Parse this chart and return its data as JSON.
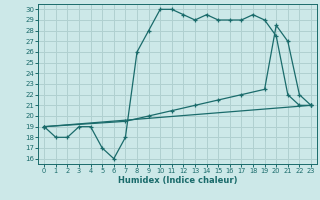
{
  "xlabel": "Humidex (Indice chaleur)",
  "bg_color": "#cce8e8",
  "grid_color": "#b0d0d0",
  "line_color": "#1a6b6b",
  "xlim": [
    -0.5,
    23.5
  ],
  "ylim": [
    15.5,
    30.5
  ],
  "yticks": [
    16,
    17,
    18,
    19,
    20,
    21,
    22,
    23,
    24,
    25,
    26,
    27,
    28,
    29,
    30
  ],
  "xticks": [
    0,
    1,
    2,
    3,
    4,
    5,
    6,
    7,
    8,
    9,
    10,
    11,
    12,
    13,
    14,
    15,
    16,
    17,
    18,
    19,
    20,
    21,
    22,
    23
  ],
  "line1_x": [
    0,
    1,
    2,
    3,
    4,
    5,
    6,
    7,
    8,
    9,
    10,
    11,
    12,
    13,
    14,
    15,
    16,
    17,
    18,
    19,
    20,
    21,
    22,
    23
  ],
  "line1_y": [
    19,
    18,
    18,
    19,
    19,
    17,
    16,
    18,
    26,
    28,
    30,
    30,
    29.5,
    29,
    29.5,
    29,
    29,
    29,
    29.5,
    29,
    27.5,
    22,
    21,
    21
  ],
  "line2_x": [
    0,
    23
  ],
  "line2_y": [
    19,
    21
  ],
  "line3_x": [
    0,
    7,
    9,
    11,
    13,
    15,
    17,
    19,
    20,
    21,
    22,
    23
  ],
  "line3_y": [
    19,
    19.5,
    20.0,
    20.5,
    21.0,
    21.5,
    22.0,
    22.5,
    28.5,
    27.0,
    22.0,
    21.0
  ]
}
